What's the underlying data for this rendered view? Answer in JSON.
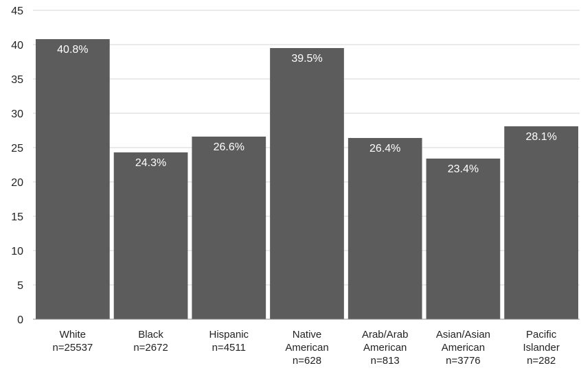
{
  "chart_data": {
    "type": "bar",
    "title": "",
    "xlabel": "",
    "ylabel": "",
    "ylim": [
      0,
      45
    ],
    "yticks": [
      0,
      5,
      10,
      15,
      20,
      25,
      30,
      35,
      40,
      45
    ],
    "grid": true,
    "legend": "none",
    "bar_color": "#5c5c5c",
    "categories": [
      [
        "White",
        "n=25537"
      ],
      [
        "Black",
        "n=2672"
      ],
      [
        "Hispanic",
        "n=4511"
      ],
      [
        "Native",
        "American",
        "n=628"
      ],
      [
        "Arab/Arab",
        "American",
        "n=813"
      ],
      [
        "Asian/Asian",
        "American",
        "n=3776"
      ],
      [
        "Pacific",
        "Islander",
        "n=282"
      ]
    ],
    "values": [
      40.8,
      24.3,
      26.6,
      39.5,
      26.4,
      23.4,
      28.1
    ],
    "data_labels": [
      "40.8%",
      "24.3%",
      "26.6%",
      "39.5%",
      "26.4%",
      "23.4%",
      "28.1%"
    ]
  }
}
